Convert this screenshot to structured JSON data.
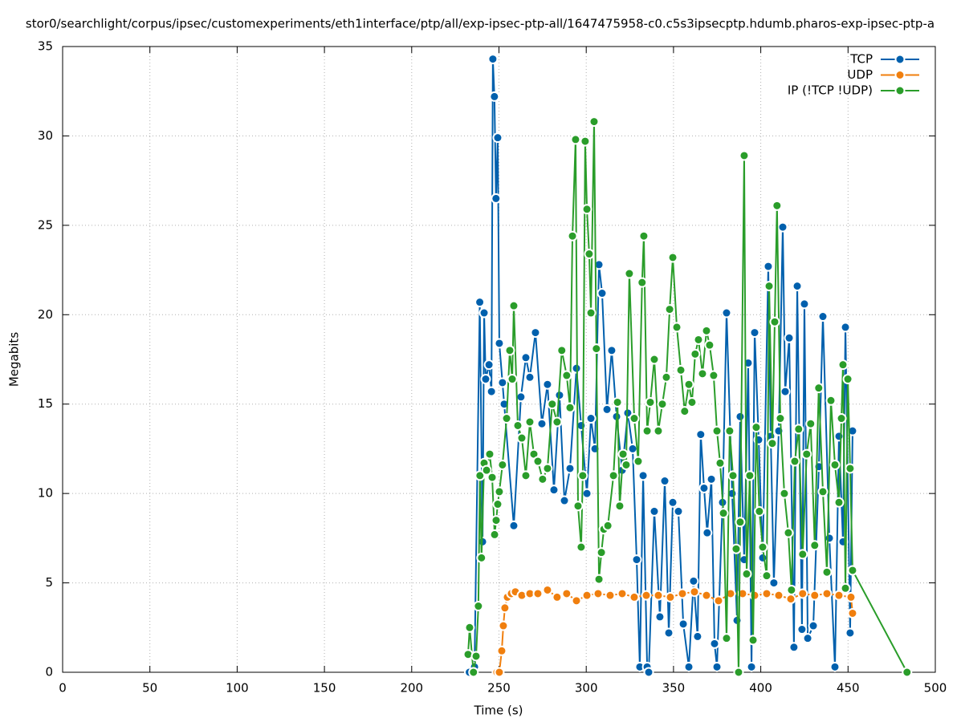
{
  "chart_data": {
    "type": "line",
    "title": "stor0/searchlight/corpus/ipsec/customexperiments/eth1interface/ptp/all/exp-ipsec-ptp-all/1647475958-c0.c5s3ipsecptp.hdumb.pharos-exp-ipsec-ptp-a",
    "x_label": "Time (s)",
    "y_label": "Megabits",
    "xlim": [
      0,
      500
    ],
    "xticks": [
      0,
      50,
      100,
      150,
      200,
      250,
      300,
      350,
      400,
      450,
      500
    ],
    "ylim": [
      0,
      35
    ],
    "yticks": [
      0,
      5,
      10,
      15,
      20,
      25,
      30,
      35
    ],
    "grid": true,
    "legend": "top right",
    "series": [
      {
        "name": "TCP",
        "color": "#0060ad",
        "x": [
          233,
          236,
          239,
          240.6,
          241.5,
          242.4,
          244.3,
          245.7,
          246.5,
          247.4,
          248.3,
          249.3,
          250.2,
          252,
          253,
          258.5,
          262.6,
          265.4,
          267.7,
          270.9,
          274.6,
          277.8,
          281.5,
          284.7,
          287.5,
          290.7,
          294.4,
          297.1,
          300.4,
          302.7,
          305,
          307.3,
          309.1,
          311.9,
          314.6,
          317.4,
          320.6,
          323.8,
          326.6,
          328.9,
          330.7,
          332.6,
          334.9,
          335.8,
          339,
          342.2,
          345,
          347.3,
          349.6,
          352.8,
          355.6,
          358.8,
          361.5,
          363.8,
          365.6,
          367.5,
          369.3,
          371.7,
          373.5,
          374.9,
          378.1,
          380.4,
          383.6,
          386.4,
          388.2,
          390.5,
          392.8,
          394.7,
          396.5,
          398.8,
          401.1,
          404.3,
          405.7,
          407.5,
          410.3,
          412.6,
          414,
          416.3,
          419,
          420.9,
          423.6,
          425,
          426.9,
          430.1,
          433.3,
          435.6,
          439.3,
          442.5,
          444.8,
          447.1,
          448.5,
          451.2,
          452.6
        ],
        "values": [
          0,
          0.3,
          20.7,
          7.3,
          20.1,
          16.4,
          17.2,
          15.7,
          34.3,
          32.2,
          26.5,
          29.9,
          18.4,
          16.2,
          15,
          8.2,
          15.4,
          17.6,
          16.5,
          19,
          13.9,
          16.1,
          10.2,
          15.5,
          9.6,
          11.4,
          17,
          13.8,
          10,
          14.2,
          12.5,
          22.8,
          21.2,
          14.7,
          18,
          14.3,
          11.3,
          14.5,
          12.5,
          6.3,
          0.3,
          11,
          0.3,
          0,
          9,
          3.1,
          10.7,
          2.2,
          9.5,
          9,
          2.7,
          0.3,
          5.1,
          2,
          13.3,
          10.3,
          7.8,
          10.8,
          1.6,
          0.3,
          9.5,
          20.1,
          10,
          2.9,
          14.3,
          6.3,
          17.3,
          0.3,
          19,
          13,
          6.4,
          22.7,
          13.2,
          5,
          13.5,
          24.9,
          15.7,
          18.7,
          1.4,
          21.6,
          2.4,
          20.6,
          1.9,
          2.6,
          11.5,
          19.9,
          7.5,
          0.3,
          13.2,
          7.3,
          19.3,
          2.2,
          13.5
        ]
      },
      {
        "name": "UDP",
        "color": "#f07f0e",
        "x": [
          248.8,
          250.2,
          251.6,
          252.5,
          253.4,
          254.8,
          257.1,
          259.4,
          263.1,
          267.7,
          272.3,
          277.8,
          283.3,
          288.8,
          294.4,
          300.4,
          306.8,
          313.7,
          320.6,
          327.5,
          334.4,
          341.3,
          348.2,
          355.1,
          362,
          368.9,
          375.8,
          382.7,
          389.6,
          396.5,
          403.4,
          410.3,
          417.2,
          424,
          430.9,
          437.9,
          444.8,
          451.7,
          452.6
        ],
        "values": [
          0,
          0,
          1.2,
          2.6,
          3.6,
          4.2,
          4.4,
          4.5,
          4.3,
          4.4,
          4.4,
          4.6,
          4.2,
          4.4,
          4,
          4.3,
          4.4,
          4.3,
          4.4,
          4.2,
          4.3,
          4.3,
          4.2,
          4.4,
          4.5,
          4.3,
          4,
          4.4,
          4.4,
          4.3,
          4.4,
          4.3,
          4.1,
          4.4,
          4.3,
          4.4,
          4.3,
          4.2,
          3.3
        ]
      },
      {
        "name": "IP (!TCP  !UDP)",
        "color": "#2a9d2a",
        "x": [
          232.3,
          233.2,
          235.4,
          236.9,
          238.2,
          239.1,
          240,
          241.5,
          242.9,
          244.7,
          246.1,
          247.5,
          248.4,
          249.3,
          250.2,
          252,
          254.4,
          256.2,
          257.6,
          258.5,
          260.8,
          263.1,
          265.4,
          267.7,
          270,
          272.3,
          275,
          277.8,
          280.5,
          283.3,
          286,
          288.8,
          290.7,
          292.1,
          293.9,
          295.3,
          297.1,
          298,
          299.4,
          300.4,
          301.7,
          302.7,
          304.5,
          305.8,
          307.3,
          308.7,
          310.1,
          312.4,
          315.6,
          317.9,
          319.2,
          321.1,
          322.9,
          324.7,
          327.5,
          329.8,
          332,
          333,
          334.9,
          336.7,
          339,
          341.3,
          343.6,
          345.9,
          347.8,
          349.6,
          351.9,
          354.2,
          356.4,
          358.8,
          360.6,
          362.4,
          364.3,
          366.6,
          368.9,
          370.7,
          373,
          374.9,
          376.7,
          378.6,
          380.4,
          382.2,
          384.1,
          385.9,
          387.3,
          388.2,
          390.5,
          391.9,
          393.7,
          395.6,
          397.4,
          399.2,
          401.1,
          403.4,
          404.8,
          406.6,
          408,
          409.3,
          411.2,
          413.5,
          415.8,
          417.6,
          419.5,
          421.7,
          424,
          426.3,
          428.6,
          430.9,
          433.2,
          435.6,
          437.9,
          440.2,
          442.5,
          444.8,
          446.2,
          447.1,
          448.5,
          449.9,
          451.2,
          452.6,
          483.8
        ],
        "values": [
          1,
          2.5,
          0,
          0.9,
          3.7,
          11,
          6.4,
          11.7,
          11.3,
          12.2,
          10.9,
          7.7,
          8.5,
          9.4,
          10.1,
          11.6,
          14.2,
          18,
          16.4,
          20.5,
          13.8,
          13.1,
          11,
          14,
          12.2,
          11.8,
          10.8,
          11.4,
          15,
          14,
          18,
          16.6,
          14.8,
          24.4,
          29.8,
          9.3,
          7,
          11,
          29.7,
          25.9,
          23.4,
          20.1,
          30.8,
          18.1,
          5.2,
          6.7,
          8,
          8.2,
          11,
          15.1,
          9.3,
          12.2,
          11.6,
          22.3,
          14.2,
          11.8,
          21.8,
          24.4,
          13.5,
          15.1,
          17.5,
          13.5,
          15,
          16.5,
          20.3,
          23.2,
          19.3,
          16.9,
          14.6,
          16.1,
          15.1,
          17.8,
          18.6,
          16.7,
          19.1,
          18.3,
          16.6,
          13.5,
          11.7,
          8.9,
          1.9,
          13.5,
          11,
          6.9,
          0,
          8.4,
          28.9,
          5.5,
          11,
          1.8,
          13.7,
          9,
          7,
          5.4,
          21.6,
          12.8,
          19.6,
          26.1,
          14.2,
          10,
          7.8,
          4.6,
          11.8,
          13.6,
          6.6,
          12.2,
          13.9,
          7.1,
          15.9,
          10.1,
          5.6,
          15.2,
          11.6,
          9.5,
          14.2,
          17.2,
          4.7,
          16.4,
          11.4,
          5.7,
          0
        ]
      }
    ]
  }
}
